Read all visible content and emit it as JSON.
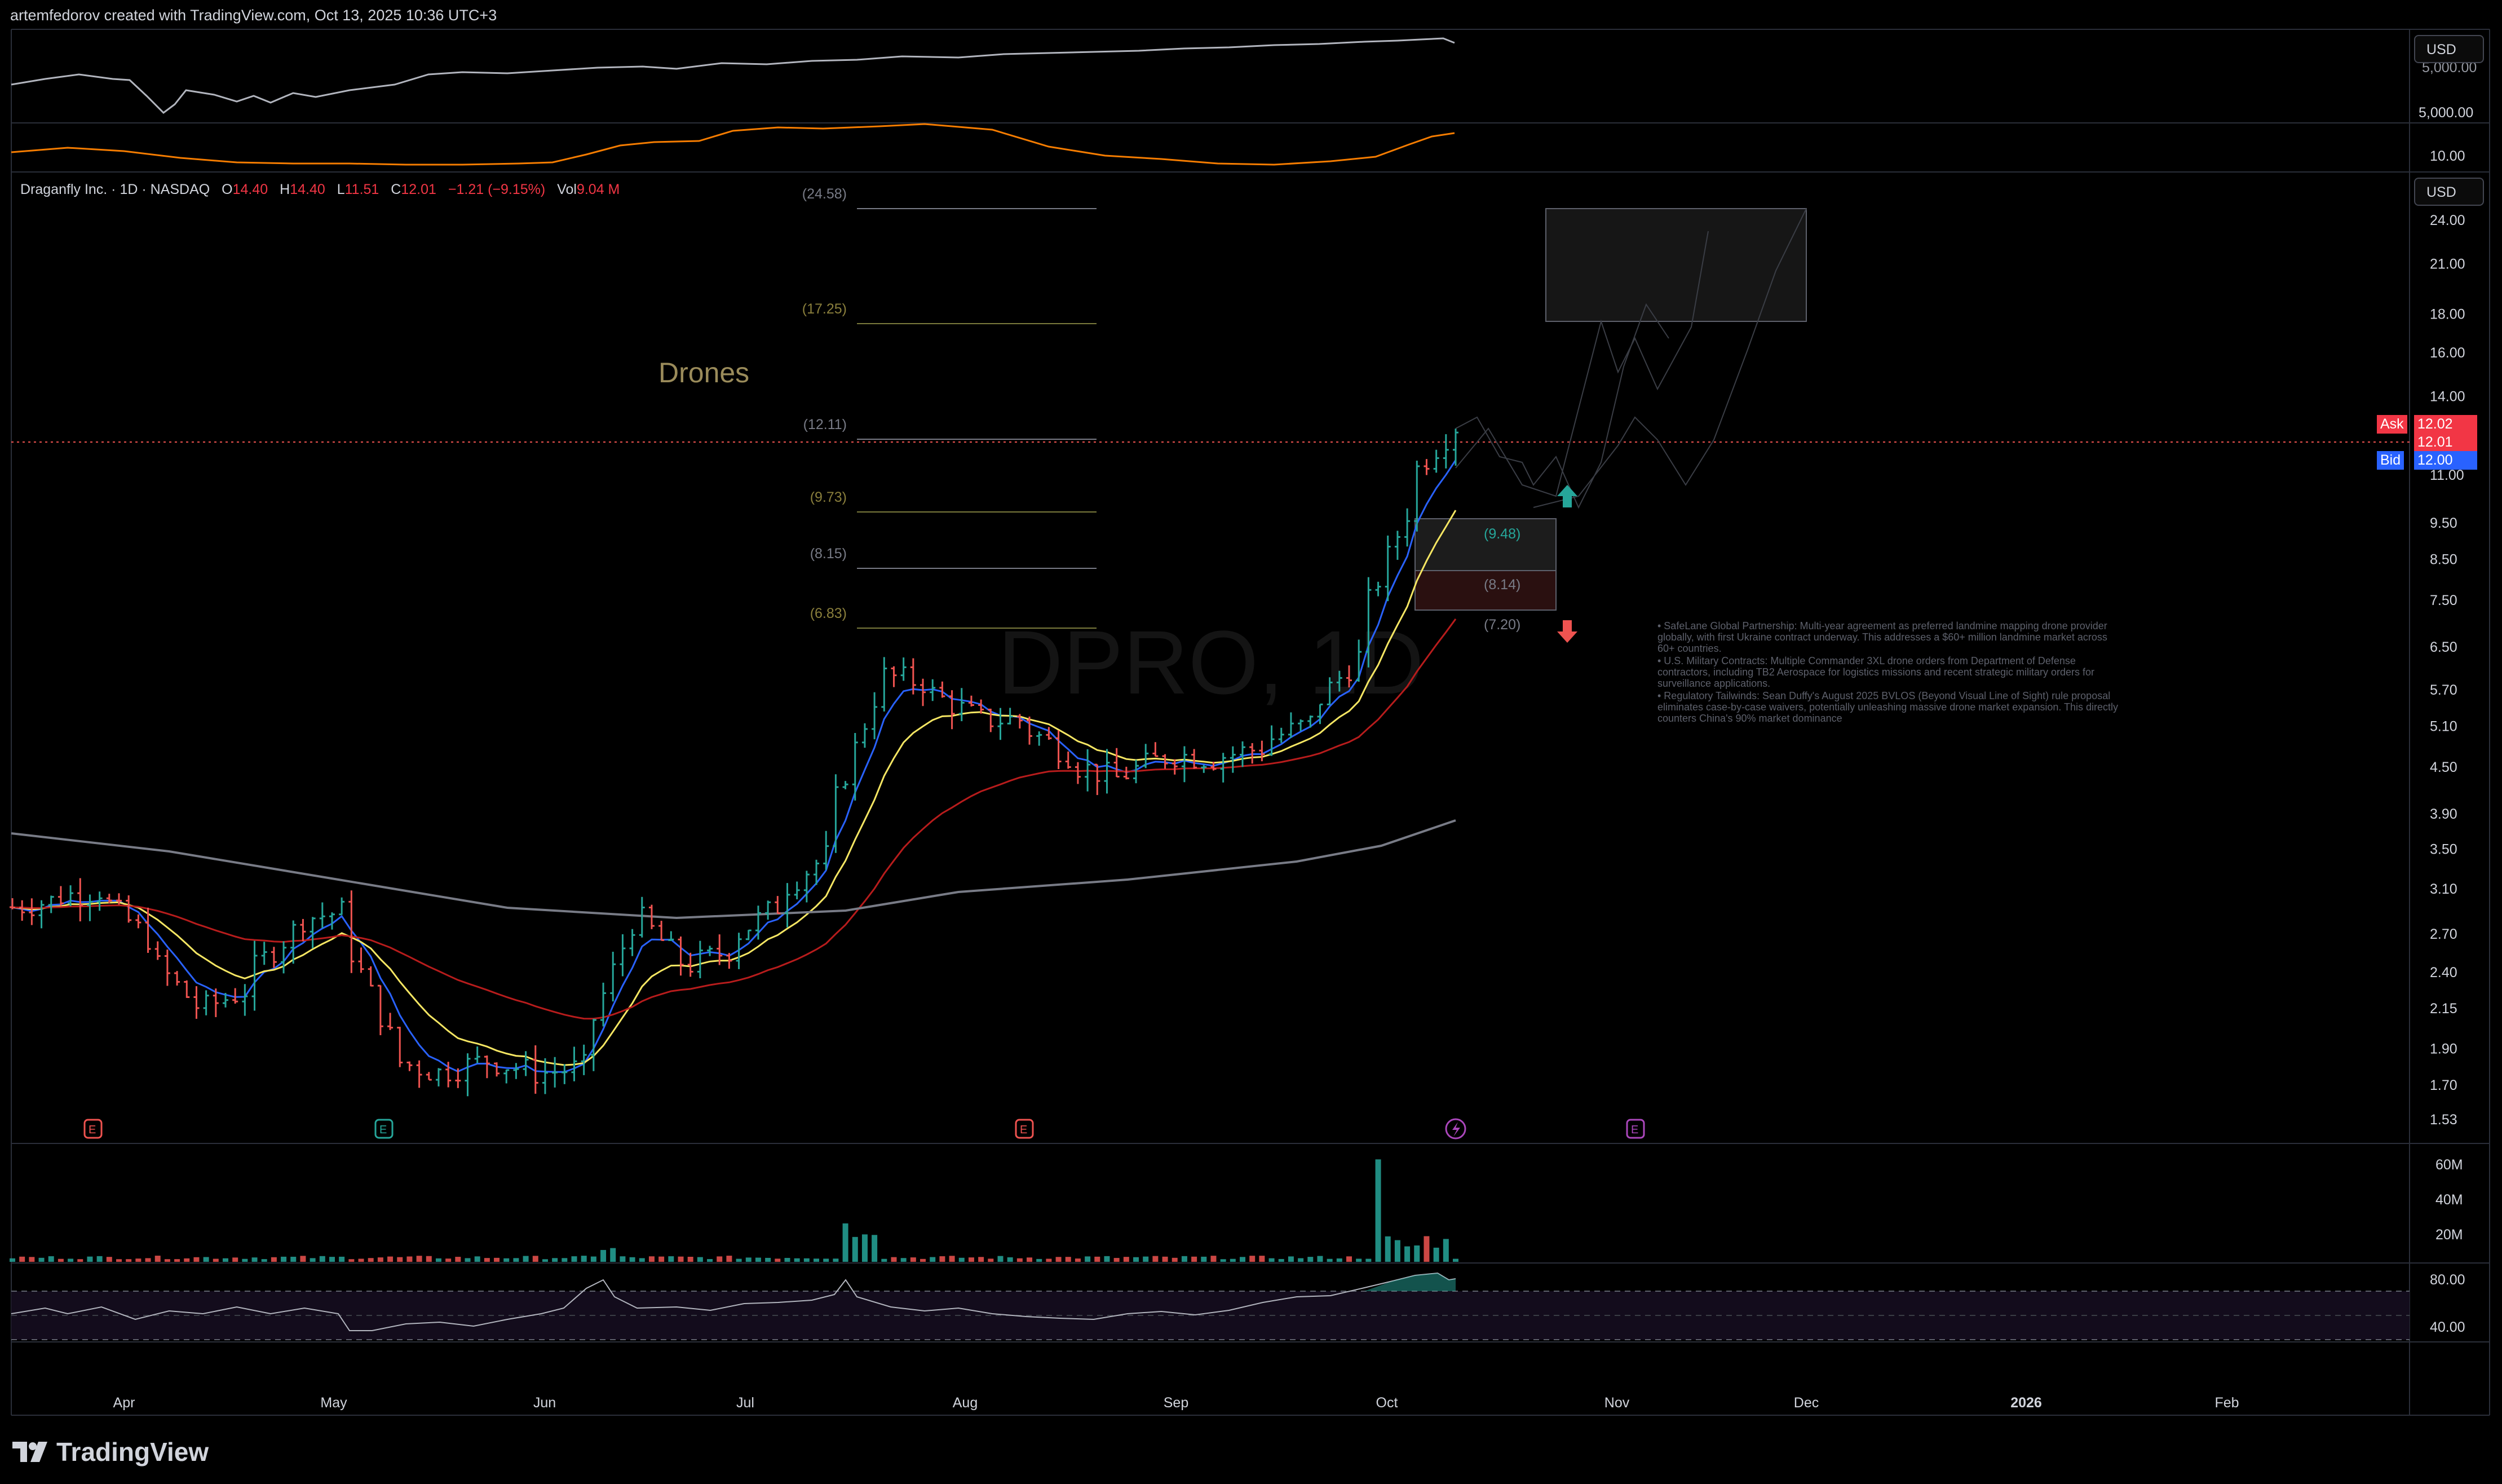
{
  "header": "artemfedorov created with TradingView.com, Oct 13, 2025 10:36 UTC+3",
  "symbol": {
    "name": "Draganfly Inc. · 1D · NASDAQ",
    "open_label": "O",
    "open": "14.40",
    "high_label": "H",
    "high": "14.40",
    "low_label": "L",
    "low": "11.51",
    "close_label": "C",
    "close": "12.01",
    "change": "−1.21 (−9.15%)",
    "vol_label": "Vol",
    "volume": "9.04 M"
  },
  "currency": "USD",
  "watermark": "DPRO, 1D",
  "drawing_label": "Drones",
  "fib_levels": [
    "(24.58)",
    "(17.25)",
    "(12.11)",
    "(9.73)",
    "(8.15)",
    "(6.83)"
  ],
  "trade_box_labels": [
    "(9.48)",
    "(8.14)",
    "(7.20)"
  ],
  "quote_tags": {
    "ask_label": "Ask",
    "ask": "12.02",
    "last": "12.01",
    "bid_label": "Bid",
    "bid": "12.00"
  },
  "notes": [
    "• SafeLane Global Partnership: Multi-year agreement as preferred landmine mapping drone provider globally, with first Ukraine contract underway. This addresses a $60+ million landmine market across 60+ countries.",
    "• U.S. Military Contracts: Multiple Commander 3XL drone orders from Department of Defense contractors, including TB2 Aerospace for logistics missions and recent strategic military orders for surveillance applications.",
    "• Regulatory Tailwinds: Sean Duffy's August 2025 BVLOS (Beyond Visual Line of Sight) rule proposal eliminates case-by-case waivers, potentially unleashing massive drone market expansion. This directly counters China's 90% market dominance"
  ],
  "logo_text": "TradingView",
  "colors": {
    "up": "#26a69a",
    "down": "#ef5350",
    "ema_fast": "#2962ff",
    "ema_mid": "#f5e663",
    "ema_slow": "#b71c1c",
    "sma_long": "#787b86",
    "orange": "#f57c00"
  },
  "chart_data": {
    "type": "candlestick",
    "symbol": "DPRO",
    "interval": "1D",
    "scale": "log",
    "ylim": [
      1.5,
      26
    ],
    "x_ticks": [
      "Apr",
      "May",
      "Jun",
      "Jul",
      "Aug",
      "Sep",
      "Oct",
      "Nov",
      "Dec",
      "2026",
      "Feb"
    ],
    "y_ticks": [
      "24.00",
      "21.00",
      "18.00",
      "16.00",
      "14.00",
      "11.00",
      "9.50",
      "8.50",
      "7.50",
      "6.50",
      "5.70",
      "5.10",
      "4.50",
      "3.90",
      "3.50",
      "3.10",
      "2.70",
      "2.40",
      "2.15",
      "1.90",
      "1.70",
      "1.53"
    ],
    "close_series": [
      {
        "date": "Mar 13",
        "close": 2.9
      },
      {
        "date": "Mar 27",
        "close": 3.1
      },
      {
        "date": "Apr 3",
        "close": 2.6
      },
      {
        "date": "Apr 10",
        "close": 2.1
      },
      {
        "date": "Apr 17",
        "close": 2.3
      },
      {
        "date": "Apr 24",
        "close": 2.8
      },
      {
        "date": "May 1",
        "close": 2.9
      },
      {
        "date": "May 8",
        "close": 1.85
      },
      {
        "date": "May 15",
        "close": 1.75
      },
      {
        "date": "May 22",
        "close": 1.85
      },
      {
        "date": "May 29",
        "close": 1.75
      },
      {
        "date": "Jun 5",
        "close": 1.8
      },
      {
        "date": "Jun 12",
        "close": 3.0
      },
      {
        "date": "Jun 19",
        "close": 2.4
      },
      {
        "date": "Jun 26",
        "close": 2.6
      },
      {
        "date": "Jul 3",
        "close": 3.0
      },
      {
        "date": "Jul 10",
        "close": 3.5
      },
      {
        "date": "Jul 17",
        "close": 6.0
      },
      {
        "date": "Jul 24",
        "close": 5.8
      },
      {
        "date": "Jul 31",
        "close": 5.2
      },
      {
        "date": "Aug 7",
        "close": 5.2
      },
      {
        "date": "Aug 14",
        "close": 4.6
      },
      {
        "date": "Aug 21",
        "close": 4.3
      },
      {
        "date": "Aug 28",
        "close": 4.7
      },
      {
        "date": "Sep 4",
        "close": 4.6
      },
      {
        "date": "Sep 11",
        "close": 4.8
      },
      {
        "date": "Sep 18",
        "close": 5.2
      },
      {
        "date": "Sep 25",
        "close": 6.5
      },
      {
        "date": "Oct 2",
        "close": 10.5
      },
      {
        "date": "Oct 9",
        "close": 13.2
      },
      {
        "date": "Oct 10",
        "close": 12.01
      }
    ],
    "volume_ticks": [
      "60M",
      "40M",
      "20M"
    ],
    "rsi_ticks": [
      "80.00",
      "40.00"
    ],
    "upper_panel_ticks": [
      "5,000.00",
      "10.00"
    ],
    "upper_panel_partial_label": "5,000.00"
  }
}
